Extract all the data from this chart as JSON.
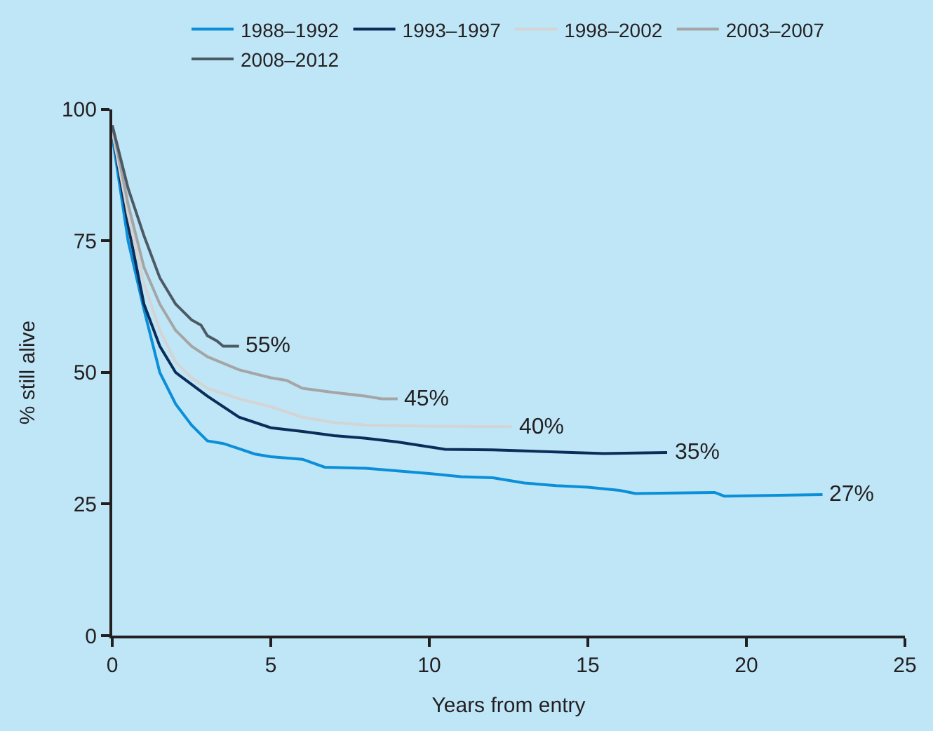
{
  "chart_data": {
    "type": "line",
    "xlabel": "Years from entry",
    "ylabel": "% still alive",
    "xlim": [
      0,
      25
    ],
    "xticks": [
      0,
      5,
      10,
      15,
      20,
      25
    ],
    "ylim": [
      0,
      100
    ],
    "yticks": [
      0,
      25,
      50,
      75,
      100
    ],
    "grid": false,
    "legend": "top",
    "marker": "none",
    "line_style": "solid",
    "series": [
      {
        "name": "1988–1992",
        "color": "#0a8fd8",
        "x": [
          0,
          0.5,
          1,
          1.5,
          2,
          2.5,
          3,
          3.5,
          4,
          4.5,
          5,
          6,
          6.7,
          8,
          10,
          11,
          12,
          13,
          14,
          15,
          16,
          16.5,
          19,
          19.3,
          22.4
        ],
        "values": [
          95,
          75,
          62,
          50,
          44,
          40,
          37,
          36.5,
          35.5,
          34.5,
          34,
          33.5,
          32,
          31.8,
          30.8,
          30.2,
          30,
          29,
          28.5,
          28.2,
          27.6,
          27,
          27.2,
          26.5,
          26.8
        ]
      },
      {
        "name": "1993–1997",
        "color": "#0a2d5a",
        "x": [
          0,
          0.5,
          1,
          1.5,
          2,
          3,
          4,
          5,
          6,
          7,
          8,
          9,
          10.5,
          12,
          15.5,
          17.5
        ],
        "values": [
          96,
          78,
          63,
          55,
          50,
          45.5,
          41.5,
          39.5,
          38.8,
          38,
          37.5,
          36.8,
          35.4,
          35.3,
          34.6,
          34.8
        ]
      },
      {
        "name": "1998–2002",
        "color": "#d4d4d4",
        "x": [
          0,
          0.5,
          1,
          1.5,
          2,
          2.5,
          3,
          4,
          5,
          6,
          7,
          8,
          10,
          12.6
        ],
        "values": [
          96,
          80,
          67,
          58,
          52,
          49,
          47,
          45,
          43.5,
          41.5,
          40.5,
          40,
          39.8,
          39.7
        ]
      },
      {
        "name": "2003–2007",
        "color": "#a5a5a5",
        "x": [
          0,
          0.5,
          1,
          1.5,
          2,
          2.5,
          3,
          4,
          5,
          5.5,
          6,
          7,
          8,
          8.5,
          9
        ],
        "values": [
          97,
          82,
          70,
          63,
          58,
          55,
          53,
          50.5,
          49,
          48.5,
          47,
          46.2,
          45.5,
          45,
          45
        ]
      },
      {
        "name": "2008–2012",
        "color": "#4d5a66",
        "x": [
          0,
          0.5,
          1,
          1.5,
          2,
          2.5,
          2.8,
          3,
          3.3,
          3.5,
          4
        ],
        "values": [
          97,
          85,
          76,
          68,
          63,
          60,
          59,
          57,
          56,
          55,
          55
        ]
      }
    ],
    "annotations": [
      {
        "text": "55%",
        "x": 4,
        "y": 55
      },
      {
        "text": "45%",
        "x": 9,
        "y": 45
      },
      {
        "text": "40%",
        "x": 12.6,
        "y": 39.7
      },
      {
        "text": "35%",
        "x": 17.5,
        "y": 34.8
      },
      {
        "text": "27%",
        "x": 22.4,
        "y": 26.8
      }
    ]
  }
}
